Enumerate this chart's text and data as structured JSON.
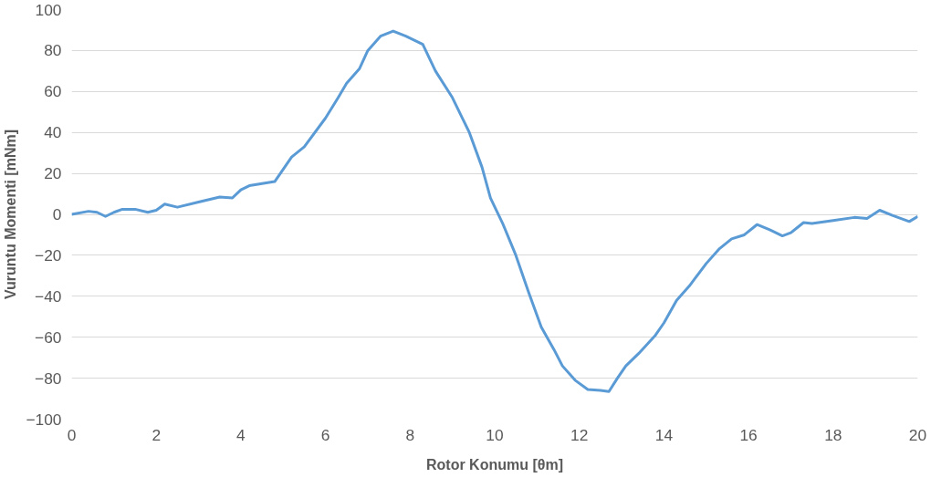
{
  "chart_data": {
    "type": "line",
    "xlabel": "Rotor Konumu [θm]",
    "ylabel": "Vuruntu Momenti [mNm]",
    "x": [
      0,
      0.4,
      0.6,
      0.8,
      1.0,
      1.2,
      1.5,
      1.8,
      2.0,
      2.2,
      2.5,
      3.0,
      3.5,
      3.8,
      4.0,
      4.2,
      4.5,
      4.8,
      5.0,
      5.2,
      5.5,
      6.0,
      6.3,
      6.5,
      6.8,
      7.0,
      7.3,
      7.6,
      7.9,
      8.3,
      8.6,
      9.0,
      9.4,
      9.7,
      9.9,
      10.2,
      10.5,
      10.8,
      11.1,
      11.4,
      11.6,
      11.9,
      12.2,
      12.5,
      12.7,
      12.9,
      13.1,
      13.4,
      13.8,
      14.0,
      14.3,
      14.6,
      15.0,
      15.3,
      15.6,
      15.9,
      16.2,
      16.5,
      16.8,
      17.0,
      17.3,
      17.5,
      18.0,
      18.5,
      18.8,
      19.1,
      19.4,
      19.8,
      20.0
    ],
    "series": [
      {
        "color": "#5b9bd5",
        "values": [
          0,
          1.5,
          1,
          -1,
          1,
          2.5,
          2.5,
          1,
          2,
          5,
          3.5,
          6,
          8.5,
          8,
          12,
          14,
          15,
          16,
          22,
          28,
          33,
          47,
          57,
          64,
          71,
          80,
          87,
          89.5,
          87,
          83,
          70,
          57,
          40,
          23,
          8,
          -5,
          -20,
          -38,
          -55,
          -66,
          -74,
          -81,
          -85.5,
          -86,
          -86.5,
          -80,
          -74,
          -68,
          -59,
          -53,
          -42,
          -35,
          -24,
          -17,
          -12,
          -10,
          -5,
          -7.5,
          -10.5,
          -9,
          -4,
          -4.5,
          -3,
          -1.5,
          -2,
          2,
          -0.5,
          -3.5,
          -1
        ]
      }
    ],
    "xlim": [
      0,
      20
    ],
    "xticks": [
      0,
      2,
      4,
      6,
      8,
      10,
      12,
      14,
      16,
      18,
      20
    ],
    "ylim": [
      -100,
      100
    ],
    "yticks": [
      -100,
      -80,
      -60,
      -40,
      -20,
      0,
      20,
      40,
      60,
      80,
      100
    ],
    "grid": "y",
    "marker": "none",
    "line_style": "solid"
  }
}
